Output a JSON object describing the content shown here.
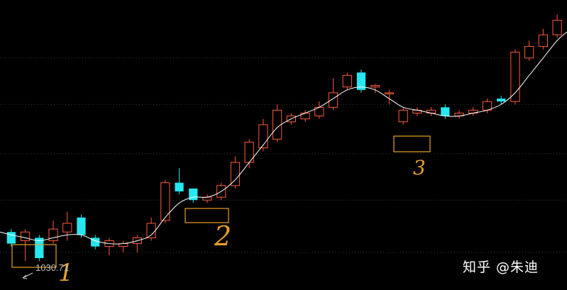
{
  "chart_data": {
    "type": "candlestick",
    "price_label": "1030",
    "price_label_suffix": ".71",
    "watermark": "知乎 @朱迪",
    "annotations": [
      "1",
      "2",
      "3"
    ],
    "up_color": "#ff5a3c",
    "down_color": "#25e8f0",
    "ma_color": "#ffffff",
    "grid": true,
    "ylim": [
      0,
      100
    ],
    "candles": [
      {
        "o": 20,
        "c": 16,
        "h": 21,
        "l": 15
      },
      {
        "o": 17,
        "c": 20,
        "h": 21,
        "l": 10
      },
      {
        "o": 18,
        "c": 11,
        "h": 19,
        "l": 10
      },
      {
        "o": 17,
        "c": 21,
        "h": 24,
        "l": 16
      },
      {
        "o": 20,
        "c": 23,
        "h": 27,
        "l": 17
      },
      {
        "o": 25,
        "c": 19,
        "h": 26,
        "l": 18
      },
      {
        "o": 18,
        "c": 15,
        "h": 19,
        "l": 14
      },
      {
        "o": 15,
        "c": 17,
        "h": 18,
        "l": 12
      },
      {
        "o": 15,
        "c": 16,
        "h": 17,
        "l": 13
      },
      {
        "o": 16,
        "c": 18,
        "h": 19,
        "l": 13
      },
      {
        "o": 18,
        "c": 23,
        "h": 25,
        "l": 17
      },
      {
        "o": 24,
        "c": 37,
        "h": 38,
        "l": 23
      },
      {
        "o": 37,
        "c": 34,
        "h": 42,
        "l": 33
      },
      {
        "o": 35,
        "c": 31,
        "h": 35,
        "l": 30
      },
      {
        "o": 31,
        "c": 32,
        "h": 33,
        "l": 30
      },
      {
        "o": 32,
        "c": 36,
        "h": 37,
        "l": 31
      },
      {
        "o": 36,
        "c": 44,
        "h": 46,
        "l": 35
      },
      {
        "o": 44,
        "c": 51,
        "h": 52,
        "l": 42
      },
      {
        "o": 49,
        "c": 57,
        "h": 59,
        "l": 48
      },
      {
        "o": 52,
        "c": 62,
        "h": 64,
        "l": 51
      },
      {
        "o": 58,
        "c": 60,
        "h": 61,
        "l": 57
      },
      {
        "o": 59,
        "c": 61,
        "h": 62,
        "l": 58
      },
      {
        "o": 60,
        "c": 63,
        "h": 65,
        "l": 59
      },
      {
        "o": 63,
        "c": 68,
        "h": 73,
        "l": 62
      },
      {
        "o": 70,
        "c": 74,
        "h": 75,
        "l": 69
      },
      {
        "o": 75,
        "c": 69,
        "h": 76,
        "l": 68
      },
      {
        "o": 70,
        "c": 70.5,
        "h": 71,
        "l": 68
      },
      {
        "o": 68,
        "c": 68,
        "h": 69,
        "l": 64
      },
      {
        "o": 58,
        "c": 62,
        "h": 63,
        "l": 57
      },
      {
        "o": 61,
        "c": 62,
        "h": 63,
        "l": 60
      },
      {
        "o": 61,
        "c": 62,
        "h": 63,
        "l": 60
      },
      {
        "o": 63,
        "c": 60,
        "h": 64,
        "l": 59
      },
      {
        "o": 60,
        "c": 61,
        "h": 62,
        "l": 59
      },
      {
        "o": 61,
        "c": 62,
        "h": 63,
        "l": 60
      },
      {
        "o": 62,
        "c": 65,
        "h": 66,
        "l": 61
      },
      {
        "o": 66,
        "c": 65,
        "h": 67,
        "l": 64
      },
      {
        "o": 65,
        "c": 82,
        "h": 83,
        "l": 64
      },
      {
        "o": 80,
        "c": 84,
        "h": 86,
        "l": 79
      },
      {
        "o": 84,
        "c": 88,
        "h": 90,
        "l": 83
      },
      {
        "o": 88,
        "c": 93,
        "h": 95,
        "l": 87
      }
    ],
    "moving_average": [
      19,
      18,
      17,
      18,
      19,
      19,
      17,
      16,
      16,
      17,
      19,
      25,
      30,
      32,
      32,
      34,
      38,
      44,
      50,
      56,
      59,
      61,
      63,
      66,
      69,
      70,
      69,
      66,
      63,
      62,
      61,
      60,
      60,
      61,
      62,
      64,
      68,
      74,
      80,
      86
    ]
  }
}
